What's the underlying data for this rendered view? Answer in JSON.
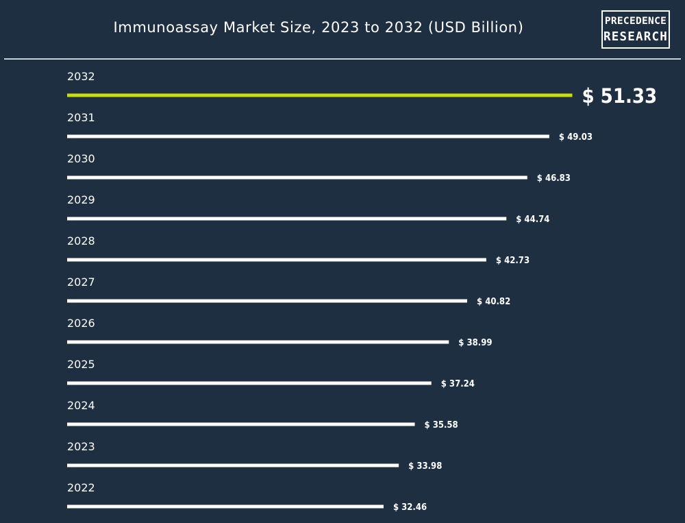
{
  "title": "Immunoassay Market Size, 2023 to 2032 (USD Billion)",
  "logo": {
    "line1": "PRECEDENCE",
    "line2": "RESEARCH"
  },
  "colors": {
    "background": "#1e2f42",
    "bar": "#ffffff",
    "highlight": "#c8dc14",
    "text": "#ffffff"
  },
  "chart_data": {
    "type": "bar",
    "orientation": "horizontal",
    "title": "Immunoassay Market Size, 2023 to 2032 (USD Billion)",
    "categories": [
      "2032",
      "2031",
      "2030",
      "2029",
      "2028",
      "2027",
      "2026",
      "2025",
      "2024",
      "2023",
      "2022"
    ],
    "values": [
      51.33,
      49.03,
      46.83,
      44.74,
      42.73,
      40.82,
      38.99,
      37.24,
      35.58,
      33.98,
      32.46
    ],
    "value_labels": [
      "$ 51.33",
      "$ 49.03",
      "$ 46.83",
      "$ 44.74",
      "$ 42.73",
      "$ 40.82",
      "$ 38.99",
      "$ 37.24",
      "$ 35.58",
      "$ 33.98",
      "$ 32.46"
    ],
    "highlight_category": "2032",
    "unit": "USD Billion",
    "grid": false,
    "legend": "none"
  }
}
